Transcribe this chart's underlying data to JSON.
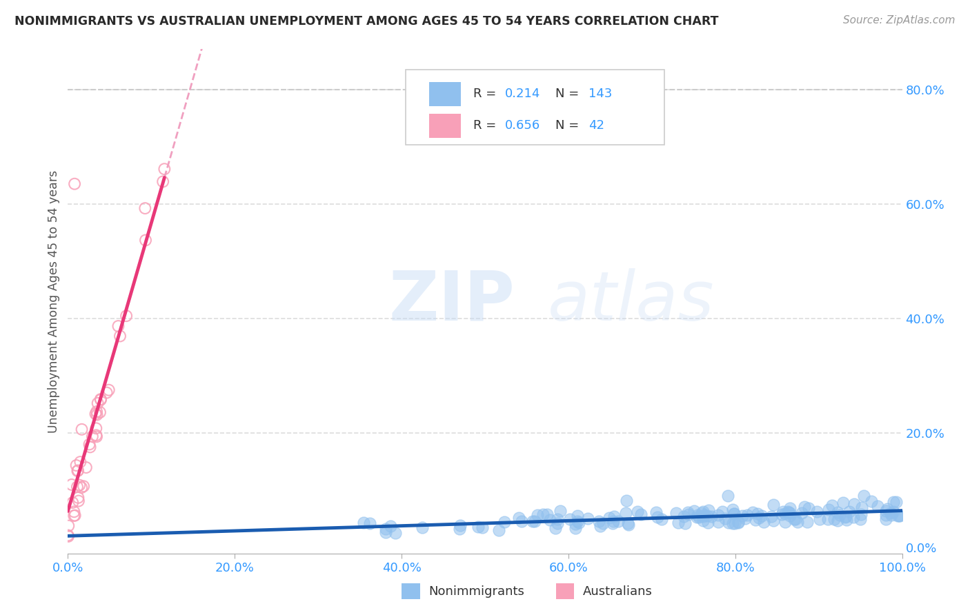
{
  "title": "NONIMMIGRANTS VS AUSTRALIAN UNEMPLOYMENT AMONG AGES 45 TO 54 YEARS CORRELATION CHART",
  "source_text": "Source: ZipAtlas.com",
  "ylabel": "Unemployment Among Ages 45 to 54 years",
  "xlim": [
    0.0,
    1.0
  ],
  "ylim": [
    -0.01,
    0.87
  ],
  "yticks": [
    0.0,
    0.2,
    0.4,
    0.6,
    0.8
  ],
  "ytick_labels": [
    "0.0%",
    "20.0%",
    "40.0%",
    "60.0%",
    "80.0%"
  ],
  "xtick_labels": [
    "0.0%",
    "20.0%",
    "40.0%",
    "60.0%",
    "80.0%",
    "100.0%"
  ],
  "xticks": [
    0.0,
    0.2,
    0.4,
    0.6,
    0.8,
    1.0
  ],
  "nonimm_color": "#90c0ee",
  "aus_color": "#f8a0b8",
  "nonimm_line_color": "#1a5cb0",
  "aus_line_color": "#e83878",
  "aus_dash_color": "#f0a0c0",
  "nonimm_R": 0.214,
  "nonimm_N": 143,
  "aus_R": 0.656,
  "aus_N": 42,
  "watermark_zip": "ZIP",
  "watermark_atlas": "atlas",
  "title_color": "#2a2a2a",
  "axis_label_color": "#555555",
  "tick_label_color": "#3399ff",
  "legend_R_color": "#3399ff",
  "dashed_line_color": "#cccccc",
  "background_color": "#ffffff",
  "grid_color": "#dddddd"
}
